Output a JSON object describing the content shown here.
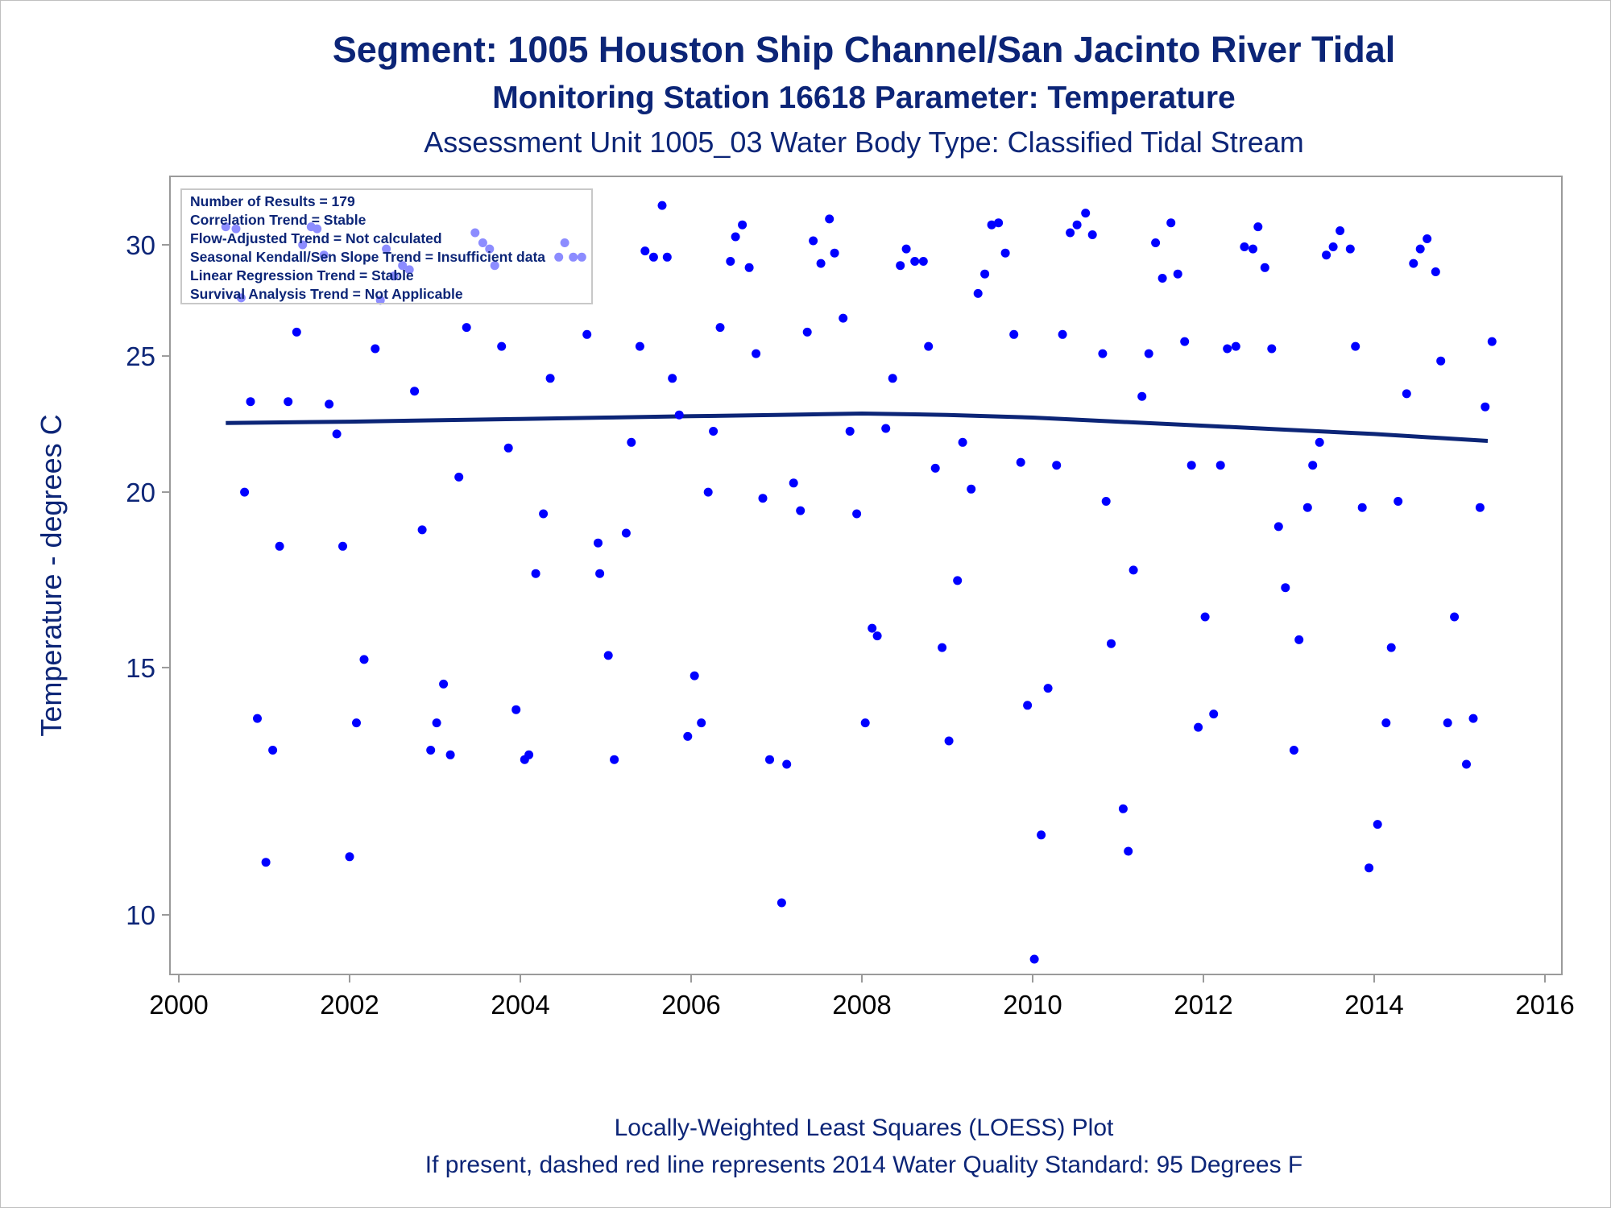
{
  "chart_data": {
    "type": "scatter",
    "title": "Segment: 1005  Houston Ship Channel/San Jacinto River Tidal",
    "subtitle": "Monitoring Station 16618 Parameter: Temperature",
    "subtitle2": "Assessment Unit 1005_03   Water Body Type: Classified Tidal Stream",
    "xlabel": "",
    "ylabel": "Temperature - degrees C",
    "footnote1": "Locally-Weighted Least Squares (LOESS) Plot",
    "footnote2": "If present, dashed red line represents 2014 Water Quality Standard: 95   Degrees F",
    "y_scale": "log",
    "xlim": [
      2000,
      2016
    ],
    "ylim": [
      8.5,
      32.5
    ],
    "x_ticks": [
      "2000",
      "2002",
      "2004",
      "2006",
      "2008",
      "2010",
      "2012",
      "2014",
      "2016"
    ],
    "y_ticks": [
      "10",
      "15",
      "20",
      "25",
      "30"
    ],
    "grid": false,
    "stats_box": {
      "placement": "top-left",
      "lines": [
        "Number of Results = 179",
        "Correlation Trend = Stable",
        "Flow-Adjusted Trend = Not calculated",
        "Seasonal Kendall/Sen Slope Trend = Insufficient data",
        "Linear Regression Trend = Stable",
        "Survival Analysis Trend = Not Applicable"
      ]
    },
    "colors": {
      "points": "#0000ff",
      "loess": "#0c2577",
      "text": "#0c2577",
      "axis": "#9a9a9a"
    },
    "loess": {
      "name": "LOESS",
      "x": [
        2000.55,
        2002.0,
        2003.0,
        2004.0,
        2005.0,
        2006.0,
        2007.0,
        2008.0,
        2009.0,
        2010.0,
        2011.0,
        2012.0,
        2013.0,
        2014.0,
        2015.33
      ],
      "y": [
        22.4,
        22.45,
        22.5,
        22.55,
        22.6,
        22.65,
        22.7,
        22.75,
        22.7,
        22.6,
        22.45,
        22.3,
        22.15,
        22.0,
        21.75
      ]
    },
    "points": [
      [
        2000.55,
        30.9
      ],
      [
        2000.67,
        30.8
      ],
      [
        2000.73,
        27.5
      ],
      [
        2000.77,
        20.0
      ],
      [
        2000.84,
        23.2
      ],
      [
        2000.92,
        13.8
      ],
      [
        2001.02,
        10.9
      ],
      [
        2001.1,
        13.1
      ],
      [
        2001.18,
        18.3
      ],
      [
        2001.28,
        23.2
      ],
      [
        2001.38,
        26.0
      ],
      [
        2001.45,
        30.0
      ],
      [
        2001.55,
        30.9
      ],
      [
        2001.62,
        30.8
      ],
      [
        2001.7,
        29.5
      ],
      [
        2001.76,
        23.1
      ],
      [
        2001.85,
        22.0
      ],
      [
        2001.92,
        18.3
      ],
      [
        2002.0,
        11.0
      ],
      [
        2002.08,
        13.7
      ],
      [
        2002.17,
        15.2
      ],
      [
        2002.3,
        25.3
      ],
      [
        2002.36,
        27.4
      ],
      [
        2002.43,
        29.8
      ],
      [
        2002.52,
        28.5
      ],
      [
        2002.62,
        29.0
      ],
      [
        2002.7,
        28.8
      ],
      [
        2002.76,
        23.6
      ],
      [
        2002.85,
        18.8
      ],
      [
        2002.95,
        13.1
      ],
      [
        2003.02,
        13.7
      ],
      [
        2003.1,
        14.6
      ],
      [
        2003.18,
        13.0
      ],
      [
        2003.28,
        20.5
      ],
      [
        2003.37,
        26.2
      ],
      [
        2003.47,
        30.6
      ],
      [
        2003.56,
        30.1
      ],
      [
        2003.64,
        29.8
      ],
      [
        2003.7,
        29.0
      ],
      [
        2003.78,
        25.4
      ],
      [
        2003.86,
        21.5
      ],
      [
        2003.95,
        14.0
      ],
      [
        2004.05,
        12.9
      ],
      [
        2004.1,
        13.0
      ],
      [
        2004.18,
        17.5
      ],
      [
        2004.27,
        19.3
      ],
      [
        2004.35,
        24.1
      ],
      [
        2004.45,
        29.4
      ],
      [
        2004.52,
        30.1
      ],
      [
        2004.62,
        29.4
      ],
      [
        2004.72,
        29.4
      ],
      [
        2004.78,
        25.9
      ],
      [
        2004.91,
        18.4
      ],
      [
        2004.93,
        17.5
      ],
      [
        2005.03,
        15.3
      ],
      [
        2005.1,
        12.9
      ],
      [
        2005.24,
        18.7
      ],
      [
        2005.3,
        21.7
      ],
      [
        2005.4,
        25.4
      ],
      [
        2005.46,
        29.7
      ],
      [
        2005.56,
        29.4
      ],
      [
        2005.66,
        32.0
      ],
      [
        2005.72,
        29.4
      ],
      [
        2005.78,
        24.1
      ],
      [
        2005.86,
        22.7
      ],
      [
        2005.96,
        13.4
      ],
      [
        2006.04,
        14.8
      ],
      [
        2006.12,
        13.7
      ],
      [
        2006.2,
        20.0
      ],
      [
        2006.26,
        22.1
      ],
      [
        2006.34,
        26.2
      ],
      [
        2006.46,
        29.2
      ],
      [
        2006.52,
        30.4
      ],
      [
        2006.6,
        31.0
      ],
      [
        2006.68,
        28.9
      ],
      [
        2006.76,
        25.1
      ],
      [
        2006.84,
        19.8
      ],
      [
        2006.92,
        12.9
      ],
      [
        2007.06,
        10.2
      ],
      [
        2007.12,
        12.8
      ],
      [
        2007.2,
        20.3
      ],
      [
        2007.28,
        19.4
      ],
      [
        2007.36,
        26.0
      ],
      [
        2007.43,
        30.2
      ],
      [
        2007.52,
        29.1
      ],
      [
        2007.62,
        31.3
      ],
      [
        2007.68,
        29.6
      ],
      [
        2007.78,
        26.6
      ],
      [
        2007.86,
        22.1
      ],
      [
        2007.94,
        19.3
      ],
      [
        2008.04,
        13.7
      ],
      [
        2008.12,
        16.0
      ],
      [
        2008.18,
        15.8
      ],
      [
        2008.28,
        22.2
      ],
      [
        2008.36,
        24.1
      ],
      [
        2008.45,
        29.0
      ],
      [
        2008.52,
        29.8
      ],
      [
        2008.62,
        29.2
      ],
      [
        2008.72,
        29.2
      ],
      [
        2008.78,
        25.4
      ],
      [
        2008.86,
        20.8
      ],
      [
        2008.94,
        15.5
      ],
      [
        2009.02,
        13.3
      ],
      [
        2009.12,
        17.3
      ],
      [
        2009.18,
        21.7
      ],
      [
        2009.28,
        20.1
      ],
      [
        2009.36,
        27.7
      ],
      [
        2009.44,
        28.6
      ],
      [
        2009.52,
        31.0
      ],
      [
        2009.6,
        31.1
      ],
      [
        2009.68,
        29.6
      ],
      [
        2009.78,
        25.9
      ],
      [
        2009.86,
        21.0
      ],
      [
        2009.94,
        14.1
      ],
      [
        2010.02,
        9.3
      ],
      [
        2010.1,
        11.4
      ],
      [
        2010.18,
        14.5
      ],
      [
        2010.28,
        20.9
      ],
      [
        2010.35,
        25.9
      ],
      [
        2010.44,
        30.6
      ],
      [
        2010.52,
        31.0
      ],
      [
        2010.62,
        31.6
      ],
      [
        2010.7,
        30.5
      ],
      [
        2010.82,
        25.1
      ],
      [
        2010.86,
        19.7
      ],
      [
        2010.92,
        15.6
      ],
      [
        2011.06,
        11.9
      ],
      [
        2011.12,
        11.1
      ],
      [
        2011.18,
        17.6
      ],
      [
        2011.28,
        23.4
      ],
      [
        2011.36,
        25.1
      ],
      [
        2011.44,
        30.1
      ],
      [
        2011.52,
        28.4
      ],
      [
        2011.62,
        31.1
      ],
      [
        2011.7,
        28.6
      ],
      [
        2011.78,
        25.6
      ],
      [
        2011.86,
        20.9
      ],
      [
        2011.94,
        13.6
      ],
      [
        2012.02,
        16.3
      ],
      [
        2012.12,
        13.9
      ],
      [
        2012.2,
        20.9
      ],
      [
        2012.28,
        25.3
      ],
      [
        2012.38,
        25.4
      ],
      [
        2012.48,
        29.9
      ],
      [
        2012.58,
        29.8
      ],
      [
        2012.64,
        30.9
      ],
      [
        2012.72,
        28.9
      ],
      [
        2012.8,
        25.3
      ],
      [
        2012.88,
        18.9
      ],
      [
        2012.96,
        17.1
      ],
      [
        2013.06,
        13.1
      ],
      [
        2013.12,
        15.7
      ],
      [
        2013.22,
        19.5
      ],
      [
        2013.28,
        20.9
      ],
      [
        2013.36,
        21.7
      ],
      [
        2013.44,
        29.5
      ],
      [
        2013.52,
        29.9
      ],
      [
        2013.6,
        30.7
      ],
      [
        2013.72,
        29.8
      ],
      [
        2013.78,
        25.4
      ],
      [
        2013.86,
        19.5
      ],
      [
        2013.94,
        10.8
      ],
      [
        2014.04,
        11.6
      ],
      [
        2014.14,
        13.7
      ],
      [
        2014.2,
        15.5
      ],
      [
        2014.28,
        19.7
      ],
      [
        2014.38,
        23.5
      ],
      [
        2014.46,
        29.1
      ],
      [
        2014.54,
        29.8
      ],
      [
        2014.62,
        30.3
      ],
      [
        2014.72,
        28.7
      ],
      [
        2014.78,
        24.8
      ],
      [
        2014.86,
        13.7
      ],
      [
        2014.94,
        16.3
      ],
      [
        2015.08,
        12.8
      ],
      [
        2015.16,
        13.8
      ],
      [
        2015.24,
        19.5
      ],
      [
        2015.3,
        23.0
      ],
      [
        2015.38,
        25.6
      ]
    ]
  }
}
